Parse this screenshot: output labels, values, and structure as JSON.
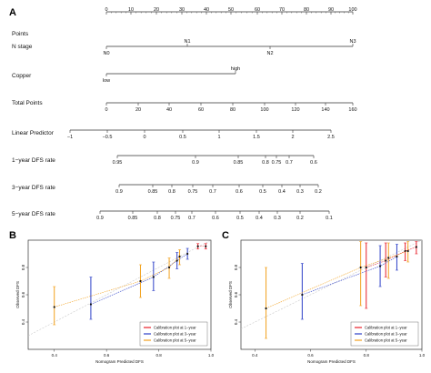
{
  "panels": {
    "A": "A",
    "B": "B",
    "C": "C"
  },
  "nomogram": {
    "rows": [
      {
        "label": "Points",
        "ticks": [
          {
            "t": "0",
            "v": 0
          },
          {
            "t": "10",
            "v": 10
          },
          {
            "t": "20",
            "v": 20
          },
          {
            "t": "30",
            "v": 30
          },
          {
            "t": "40",
            "v": 40
          },
          {
            "t": "50",
            "v": 50
          },
          {
            "t": "60",
            "v": 60
          },
          {
            "t": "70",
            "v": 70
          },
          {
            "t": "80",
            "v": 80
          },
          {
            "t": "90",
            "v": 90
          },
          {
            "t": "100",
            "v": 100
          }
        ]
      },
      {
        "label": "N stage",
        "ticks": [
          {
            "t": "N0",
            "v": 0,
            "pos": "below"
          },
          {
            "t": "N1",
            "v": 33,
            "pos": "above"
          },
          {
            "t": "N2",
            "v": 66,
            "pos": "below"
          },
          {
            "t": "N3",
            "v": 100,
            "pos": "above"
          }
        ]
      },
      {
        "label": "Copper",
        "ticks": [
          {
            "t": "low",
            "v": 0,
            "pos": "below"
          },
          {
            "t": "high",
            "v": 52,
            "pos": "above"
          }
        ]
      },
      {
        "label": "Total Points",
        "ticks": [
          {
            "t": "0",
            "v": 0
          },
          {
            "t": "20",
            "v": 20
          },
          {
            "t": "40",
            "v": 40
          },
          {
            "t": "60",
            "v": 60
          },
          {
            "t": "80",
            "v": 80
          },
          {
            "t": "100",
            "v": 100
          },
          {
            "t": "120",
            "v": 120
          },
          {
            "t": "140",
            "v": 140
          },
          {
            "t": "160",
            "v": 160
          }
        ]
      },
      {
        "label": "Linear Predictor",
        "ticks": [
          {
            "t": "−1",
            "v": -1
          },
          {
            "t": "−0.5",
            "v": -0.5
          },
          {
            "t": "0",
            "v": 0
          },
          {
            "t": "0.5",
            "v": 0.5
          },
          {
            "t": "1",
            "v": 1
          },
          {
            "t": "1.5",
            "v": 1.5
          },
          {
            "t": "2",
            "v": 2
          },
          {
            "t": "2.5",
            "v": 2.5
          }
        ]
      },
      {
        "label": "1−year DFS rate",
        "ticks": [
          {
            "t": "0.95"
          },
          {
            "t": "0.9"
          },
          {
            "t": "0.85"
          },
          {
            "t": "0.8"
          },
          {
            "t": "0.75"
          },
          {
            "t": "0.7"
          },
          {
            "t": "0.6"
          }
        ]
      },
      {
        "label": "3−year DFS rate",
        "ticks": [
          {
            "t": "0.9"
          },
          {
            "t": "0.85"
          },
          {
            "t": "0.8"
          },
          {
            "t": "0.75"
          },
          {
            "t": "0.7"
          },
          {
            "t": "0.6"
          },
          {
            "t": "0.5"
          },
          {
            "t": "0.4"
          },
          {
            "t": "0.3"
          },
          {
            "t": "0.2"
          }
        ]
      },
      {
        "label": "5−year DFS rate",
        "ticks": [
          {
            "t": "0.9"
          },
          {
            "t": "0.85"
          },
          {
            "t": "0.8"
          },
          {
            "t": "0.75"
          },
          {
            "t": "0.7"
          },
          {
            "t": "0.6"
          },
          {
            "t": "0.5"
          },
          {
            "t": "0.4"
          },
          {
            "t": "0.3"
          },
          {
            "t": "0.2"
          },
          {
            "t": "0.1"
          }
        ]
      }
    ]
  },
  "chart_data": [
    {
      "panel": "B",
      "type": "scatter",
      "title": "",
      "xlabel": "Nomogram Predicted DFS",
      "ylabel": "Observed DFS",
      "xlim": [
        0.3,
        1.0
      ],
      "ylim": [
        0.2,
        1.0
      ],
      "xticks": [
        "0.4",
        "0.6",
        "0.8",
        "1.0"
      ],
      "yticks": [
        "0.4",
        "0.6",
        "0.8"
      ],
      "legend": [
        "Calibration plot at 1−year",
        "Calibration plot at 3−year",
        "Calibration plot at 5−year"
      ],
      "legend_position": "bottom-right",
      "series": [
        {
          "name": "Calibration plot at 1−year",
          "color": "#e8202a",
          "points": [
            [
              0.95,
              0.955,
              0.935,
              0.975
            ],
            [
              0.98,
              0.955,
              0.935,
              0.975
            ]
          ]
        },
        {
          "name": "Calibration plot at 3−year",
          "color": "#2d40c8",
          "points": [
            [
              0.54,
              0.53,
              0.42,
              0.73
            ],
            [
              0.78,
              0.73,
              0.63,
              0.84
            ],
            [
              0.87,
              0.85,
              0.79,
              0.91
            ],
            [
              0.91,
              0.9,
              0.86,
              0.94
            ]
          ]
        },
        {
          "name": "Calibration plot at 5−year",
          "color": "#f2a11e",
          "points": [
            [
              0.4,
              0.51,
              0.38,
              0.66
            ],
            [
              0.73,
              0.7,
              0.58,
              0.82
            ],
            [
              0.84,
              0.8,
              0.72,
              0.87
            ],
            [
              0.88,
              0.88,
              0.82,
              0.93
            ]
          ]
        }
      ]
    },
    {
      "panel": "C",
      "type": "scatter",
      "title": "",
      "xlabel": "Nomogram Predicted DFS",
      "ylabel": "Observed DFS",
      "xlim": [
        0.35,
        1.0
      ],
      "ylim": [
        0.2,
        1.0
      ],
      "xticks": [
        "0.4",
        "0.6",
        "0.8",
        "1.0"
      ],
      "yticks": [
        "0.4",
        "0.6",
        "0.8"
      ],
      "legend": [
        "Calibration plot at 1−year",
        "Calibration plot at 3−year",
        "Calibration plot at 5−year"
      ],
      "legend_position": "bottom-right",
      "series": [
        {
          "name": "Calibration plot at 1−year",
          "color": "#e8202a",
          "points": [
            [
              0.8,
              0.8,
              0.5,
              0.98
            ],
            [
              0.87,
              0.85,
              0.73,
              0.98
            ],
            [
              0.94,
              0.92,
              0.85,
              0.98
            ],
            [
              0.98,
              0.95,
              0.9,
              0.99
            ]
          ]
        },
        {
          "name": "Calibration plot at 3−year",
          "color": "#2d40c8",
          "points": [
            [
              0.57,
              0.6,
              0.42,
              0.83
            ],
            [
              0.85,
              0.81,
              0.66,
              0.96
            ],
            [
              0.91,
              0.88,
              0.78,
              0.97
            ]
          ]
        },
        {
          "name": "Calibration plot at 5−year",
          "color": "#f2a11e",
          "points": [
            [
              0.44,
              0.5,
              0.28,
              0.8
            ],
            [
              0.78,
              0.8,
              0.52,
              0.99
            ],
            [
              0.88,
              0.87,
              0.72,
              0.98
            ],
            [
              0.95,
              0.92,
              0.84,
              0.99
            ]
          ]
        }
      ]
    }
  ]
}
